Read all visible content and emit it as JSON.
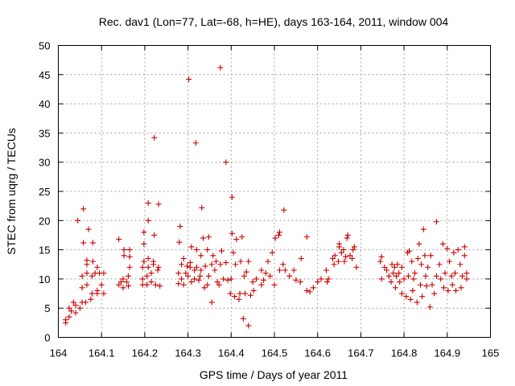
{
  "chart_data": {
    "type": "scatter",
    "title": "Rec. dav1 (Lon=77, Lat=-68, h=HE), days 163-164, 2011, window 004",
    "xlabel": "GPS time / Days of year 2011",
    "ylabel": "STEC from uqrg / TECUs",
    "xlim": [
      164,
      165
    ],
    "ylim": [
      0,
      50
    ],
    "x_ticks": [
      "164",
      "164.1",
      "164.2",
      "164.3",
      "164.4",
      "164.5",
      "164.6",
      "164.7",
      "164.8",
      "164.9",
      "165"
    ],
    "y_ticks": [
      "0",
      "5",
      "10",
      "15",
      "20",
      "25",
      "30",
      "35",
      "40",
      "45",
      "50"
    ],
    "grid": true,
    "marker": "plus",
    "marker_color": "#cc0000",
    "points": [
      [
        164.017,
        2.5
      ],
      [
        164.017,
        3.0
      ],
      [
        164.025,
        3.5
      ],
      [
        164.025,
        5.0
      ],
      [
        164.03,
        4.5
      ],
      [
        164.035,
        6.0
      ],
      [
        164.04,
        4.2
      ],
      [
        164.04,
        5.5
      ],
      [
        164.045,
        20.0
      ],
      [
        164.05,
        5.0
      ],
      [
        164.055,
        6.0
      ],
      [
        164.055,
        8.5
      ],
      [
        164.055,
        10.5
      ],
      [
        164.058,
        16.2
      ],
      [
        164.058,
        22.0
      ],
      [
        164.063,
        6.0
      ],
      [
        164.066,
        9.0
      ],
      [
        164.066,
        11.0
      ],
      [
        164.066,
        12.5
      ],
      [
        164.066,
        13.2
      ],
      [
        164.07,
        18.5
      ],
      [
        164.075,
        6.5
      ],
      [
        164.078,
        7.5
      ],
      [
        164.078,
        10.5
      ],
      [
        164.08,
        13.0
      ],
      [
        164.08,
        16.2
      ],
      [
        164.085,
        11.0
      ],
      [
        164.09,
        7.5
      ],
      [
        164.09,
        8.0
      ],
      [
        164.09,
        12.0
      ],
      [
        164.095,
        11.0
      ],
      [
        164.1,
        9.0
      ],
      [
        164.105,
        7.5
      ],
      [
        164.105,
        11.0
      ],
      [
        164.14,
        9.0
      ],
      [
        164.14,
        16.8
      ],
      [
        164.145,
        9.5
      ],
      [
        164.15,
        8.5
      ],
      [
        164.15,
        10.0
      ],
      [
        164.152,
        14.0
      ],
      [
        164.152,
        15.0
      ],
      [
        164.158,
        9.5
      ],
      [
        164.162,
        8.8
      ],
      [
        164.162,
        10.5
      ],
      [
        164.165,
        12.0
      ],
      [
        164.165,
        13.8
      ],
      [
        164.165,
        15.0
      ],
      [
        164.195,
        9.0
      ],
      [
        164.195,
        10.0
      ],
      [
        164.195,
        12.0
      ],
      [
        164.198,
        13.0
      ],
      [
        164.198,
        16.0
      ],
      [
        164.198,
        18.0
      ],
      [
        164.205,
        9.0
      ],
      [
        164.205,
        10.5
      ],
      [
        164.208,
        12.0
      ],
      [
        164.208,
        13.5
      ],
      [
        164.208,
        20.0
      ],
      [
        164.208,
        23.0
      ],
      [
        164.215,
        9.5
      ],
      [
        164.215,
        11.0
      ],
      [
        164.22,
        12.5
      ],
      [
        164.22,
        13.0
      ],
      [
        164.222,
        34.2
      ],
      [
        164.222,
        17.5
      ],
      [
        164.225,
        9.0
      ],
      [
        164.23,
        11.5
      ],
      [
        164.232,
        12.0
      ],
      [
        164.232,
        22.8
      ],
      [
        164.235,
        8.8
      ],
      [
        164.278,
        9.2
      ],
      [
        164.278,
        11.0
      ],
      [
        164.28,
        16.3
      ],
      [
        164.282,
        19.0
      ],
      [
        164.285,
        10.0
      ],
      [
        164.285,
        12.5
      ],
      [
        164.29,
        9.0
      ],
      [
        164.29,
        13.5
      ],
      [
        164.295,
        11.0
      ],
      [
        164.298,
        12.2
      ],
      [
        164.3,
        10.5
      ],
      [
        164.302,
        44.2
      ],
      [
        164.305,
        12.0
      ],
      [
        164.305,
        12.8
      ],
      [
        164.308,
        9.5
      ],
      [
        164.308,
        15.5
      ],
      [
        164.315,
        10.0
      ],
      [
        164.315,
        11.5
      ],
      [
        164.318,
        33.3
      ],
      [
        164.32,
        15.0
      ],
      [
        164.32,
        12.0
      ],
      [
        164.325,
        9.8
      ],
      [
        164.328,
        10.5
      ],
      [
        164.33,
        11.5
      ],
      [
        164.33,
        14.0
      ],
      [
        164.332,
        22.2
      ],
      [
        164.335,
        17.0
      ],
      [
        164.338,
        8.5
      ],
      [
        164.34,
        12.2
      ],
      [
        164.345,
        9.0
      ],
      [
        164.345,
        15.0
      ],
      [
        164.348,
        10.5
      ],
      [
        164.348,
        17.2
      ],
      [
        164.355,
        6.0
      ],
      [
        164.355,
        12.5
      ],
      [
        164.358,
        14.0
      ],
      [
        164.362,
        11.5
      ],
      [
        164.365,
        13.0
      ],
      [
        164.368,
        9.5
      ],
      [
        164.372,
        9.0
      ],
      [
        164.375,
        46.2
      ],
      [
        164.375,
        12.5
      ],
      [
        164.378,
        14.8
      ],
      [
        164.382,
        10.0
      ],
      [
        164.388,
        30.0
      ],
      [
        164.388,
        12.8
      ],
      [
        164.392,
        9.8
      ],
      [
        164.398,
        7.5
      ],
      [
        164.4,
        10.0
      ],
      [
        164.402,
        24.0
      ],
      [
        164.402,
        17.8
      ],
      [
        164.405,
        14.5
      ],
      [
        164.408,
        7.0
      ],
      [
        164.41,
        12.5
      ],
      [
        164.412,
        16.8
      ],
      [
        164.418,
        6.5
      ],
      [
        164.42,
        7.5
      ],
      [
        164.422,
        13.0
      ],
      [
        164.425,
        17.2
      ],
      [
        164.428,
        3.2
      ],
      [
        164.43,
        10.5
      ],
      [
        164.432,
        7.5
      ],
      [
        164.435,
        11.2
      ],
      [
        164.44,
        13.0
      ],
      [
        164.44,
        2.0
      ],
      [
        164.445,
        7.2
      ],
      [
        164.45,
        9.5
      ],
      [
        164.452,
        8.0
      ],
      [
        164.458,
        10.0
      ],
      [
        164.47,
        9.0
      ],
      [
        164.47,
        11.5
      ],
      [
        164.475,
        9.8
      ],
      [
        164.48,
        11.0
      ],
      [
        164.485,
        13.0
      ],
      [
        164.49,
        10.5
      ],
      [
        164.495,
        14.5
      ],
      [
        164.5,
        9.0
      ],
      [
        164.502,
        17.0
      ],
      [
        164.51,
        17.5
      ],
      [
        164.512,
        18.0
      ],
      [
        164.512,
        11.5
      ],
      [
        164.52,
        12.5
      ],
      [
        164.522,
        21.8
      ],
      [
        164.525,
        11.5
      ],
      [
        164.535,
        10.5
      ],
      [
        164.545,
        11.5
      ],
      [
        164.55,
        9.8
      ],
      [
        164.56,
        9.5
      ],
      [
        164.562,
        13.5
      ],
      [
        164.575,
        17.2
      ],
      [
        164.575,
        8.0
      ],
      [
        164.582,
        7.8
      ],
      [
        164.59,
        8.5
      ],
      [
        164.6,
        9.5
      ],
      [
        164.608,
        10.0
      ],
      [
        164.62,
        11.5
      ],
      [
        164.622,
        9.5
      ],
      [
        164.625,
        10.0
      ],
      [
        164.635,
        13.5
      ],
      [
        164.638,
        12.5
      ],
      [
        164.64,
        14.0
      ],
      [
        164.648,
        13.0
      ],
      [
        164.65,
        15.5
      ],
      [
        164.65,
        16.0
      ],
      [
        164.655,
        14.5
      ],
      [
        164.66,
        15.0
      ],
      [
        164.662,
        13.0
      ],
      [
        164.665,
        13.8
      ],
      [
        164.668,
        17.0
      ],
      [
        164.67,
        17.5
      ],
      [
        164.675,
        14.0
      ],
      [
        164.68,
        13.5
      ],
      [
        164.682,
        15.0
      ],
      [
        164.685,
        15.5
      ],
      [
        164.69,
        12.0
      ],
      [
        164.745,
        13.0
      ],
      [
        164.748,
        10.0
      ],
      [
        164.748,
        13.8
      ],
      [
        164.755,
        12.0
      ],
      [
        164.76,
        11.5
      ],
      [
        164.765,
        10.5
      ],
      [
        164.77,
        9.5
      ],
      [
        164.772,
        12.5
      ],
      [
        164.775,
        11.0
      ],
      [
        164.778,
        12.0
      ],
      [
        164.78,
        8.5
      ],
      [
        164.782,
        10.5
      ],
      [
        164.785,
        12.5
      ],
      [
        164.788,
        11.0
      ],
      [
        164.79,
        9.5
      ],
      [
        164.795,
        7.5
      ],
      [
        164.795,
        12.0
      ],
      [
        164.8,
        10.0
      ],
      [
        164.805,
        7.0
      ],
      [
        164.808,
        14.5
      ],
      [
        164.81,
        10.5
      ],
      [
        164.812,
        14.8
      ],
      [
        164.815,
        6.5
      ],
      [
        164.818,
        13.0
      ],
      [
        164.82,
        8.0
      ],
      [
        164.822,
        10.0
      ],
      [
        164.825,
        11.0
      ],
      [
        164.83,
        6.0
      ],
      [
        164.832,
        13.5
      ],
      [
        164.835,
        16.0
      ],
      [
        164.838,
        9.0
      ],
      [
        164.84,
        12.5
      ],
      [
        164.842,
        7.0
      ],
      [
        164.845,
        18.5
      ],
      [
        164.848,
        14.0
      ],
      [
        164.85,
        10.5
      ],
      [
        164.852,
        8.8
      ],
      [
        164.855,
        12.0
      ],
      [
        164.86,
        5.2
      ],
      [
        164.862,
        14.0
      ],
      [
        164.865,
        9.0
      ],
      [
        164.87,
        7.5
      ],
      [
        164.875,
        19.8
      ],
      [
        164.875,
        10.5
      ],
      [
        164.882,
        12.5
      ],
      [
        164.885,
        10.0
      ],
      [
        164.89,
        16.0
      ],
      [
        164.892,
        8.5
      ],
      [
        164.895,
        11.0
      ],
      [
        164.9,
        15.2
      ],
      [
        164.902,
        8.0
      ],
      [
        164.905,
        13.0
      ],
      [
        164.91,
        10.5
      ],
      [
        164.912,
        9.0
      ],
      [
        164.915,
        14.5
      ],
      [
        164.918,
        11.0
      ],
      [
        164.92,
        8.0
      ],
      [
        164.925,
        15.0
      ],
      [
        164.93,
        12.5
      ],
      [
        164.932,
        8.5
      ],
      [
        164.935,
        10.5
      ],
      [
        164.94,
        15.5
      ],
      [
        164.94,
        14.0
      ],
      [
        164.945,
        10.0
      ],
      [
        164.945,
        11.0
      ]
    ]
  }
}
